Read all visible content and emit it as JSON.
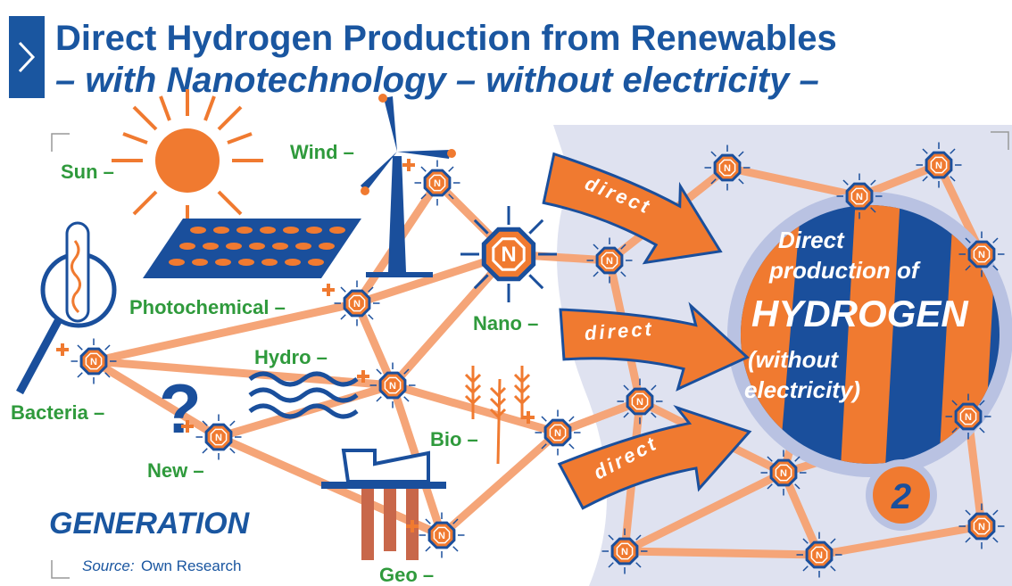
{
  "header": {
    "title": "Direct Hydrogen Production from Renewables",
    "subtitle": "– with Nanotechnology – without electricity –"
  },
  "labels": {
    "sun": "Sun –",
    "wind": "Wind –",
    "photochemical": "Photochemical –",
    "nano": "Nano –",
    "hydro": "Hydro –",
    "bacteria": "Bacteria –",
    "new": "New –",
    "bio": "Bio –",
    "geo": "Geo –"
  },
  "question": "?",
  "node_label": "N",
  "arrows": [
    "direct",
    "direct",
    "direct"
  ],
  "hydrogen": {
    "line1": "Direct",
    "line2": "production of",
    "line3": "HYDROGEN",
    "line4": "(without",
    "line5": "electricity)",
    "number": "2"
  },
  "footer": {
    "heading": "GENERATION",
    "source_label": "Source:",
    "source": "Own Research"
  }
}
